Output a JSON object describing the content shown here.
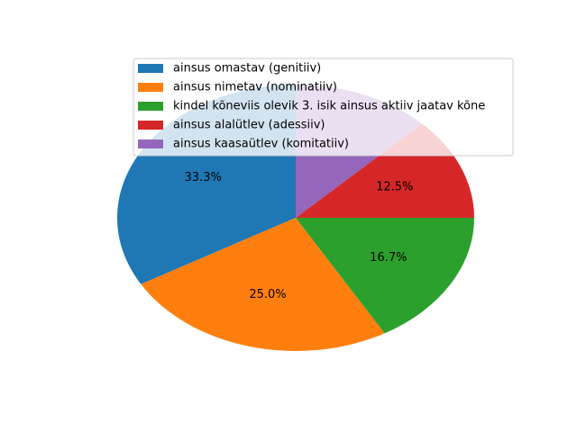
{
  "chart_data": {
    "type": "pie",
    "title": "",
    "slices": [
      {
        "label": "ainsus omastav (genitiiv)",
        "value": 33.3,
        "pct_label": "33.3%",
        "color": "#1f77b4"
      },
      {
        "label": "ainsus nimetav (nominatiiv)",
        "value": 25.0,
        "pct_label": "25.0%",
        "color": "#ff7f0e"
      },
      {
        "label": "kindel kõneviis olevik 3. isik ainsus aktiiv jaatav kõne",
        "value": 16.7,
        "pct_label": "16.7%",
        "color": "#2ca02c"
      },
      {
        "label": "ainsus alalütlev (adessiiv)",
        "value": 12.5,
        "pct_label": "12.5%",
        "color": "#d62728"
      },
      {
        "label": "ainsus kaasaütlev (komitatiiv)",
        "value": 12.5,
        "pct_label": "",
        "color": "#9467bd"
      }
    ],
    "start_angle_deg": 90,
    "direction": "counterclockwise",
    "legend_position": "upper-right"
  }
}
